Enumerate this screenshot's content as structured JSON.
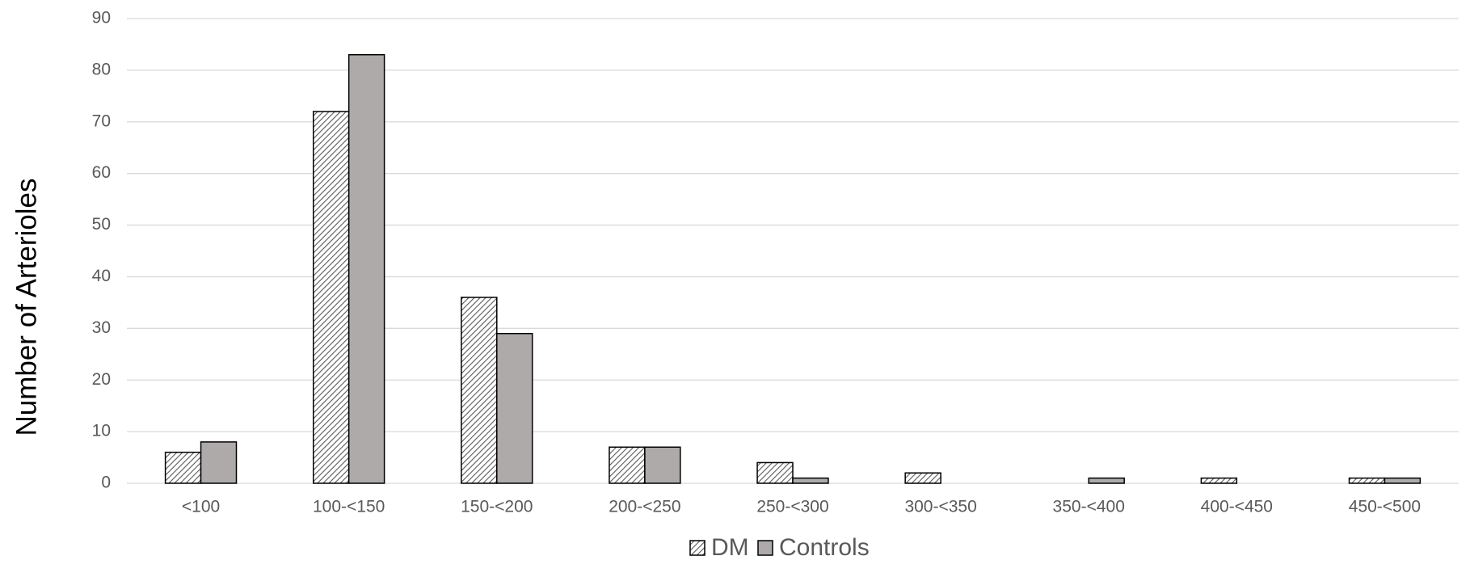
{
  "chart_data": {
    "type": "bar",
    "y_label": "Number of Arterioles",
    "categories": [
      "<100",
      "100-<150",
      "150-<200",
      "200-<250",
      "250-<300",
      "300-<350",
      "350-<400",
      "400-<450",
      "450-<500"
    ],
    "series": [
      {
        "name": "DM",
        "color": "#595959",
        "pattern": "diagonal-hatch",
        "values": [
          6,
          72,
          36,
          7,
          4,
          2,
          0,
          1,
          1
        ]
      },
      {
        "name": "Controls",
        "color": "#aeaaaa",
        "values": [
          8,
          83,
          29,
          7,
          1,
          0,
          1,
          0,
          1
        ]
      }
    ],
    "ylim": [
      0,
      90
    ],
    "yticks": [
      0,
      10,
      20,
      30,
      40,
      50,
      60,
      70,
      80,
      90
    ],
    "grid": true,
    "legend": "bottom"
  }
}
